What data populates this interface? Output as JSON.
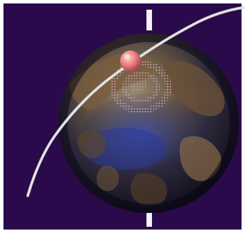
{
  "scene": {
    "subject": "globe-with-satellite-orbit",
    "colors": {
      "border": "#ffffff",
      "space": "#2a0a4a",
      "ocean": "#1e2f7a",
      "land_dark": "#3c2e1e",
      "land_light": "#8a6a48",
      "axis": "#f2f2f2",
      "orbit": "#d8d8d8",
      "satellite": "#f08a8a",
      "footprint": "#e7a3d8"
    },
    "icons": {
      "satellite": "satellite-icon",
      "axis": "rotation-axis-icon"
    }
  }
}
